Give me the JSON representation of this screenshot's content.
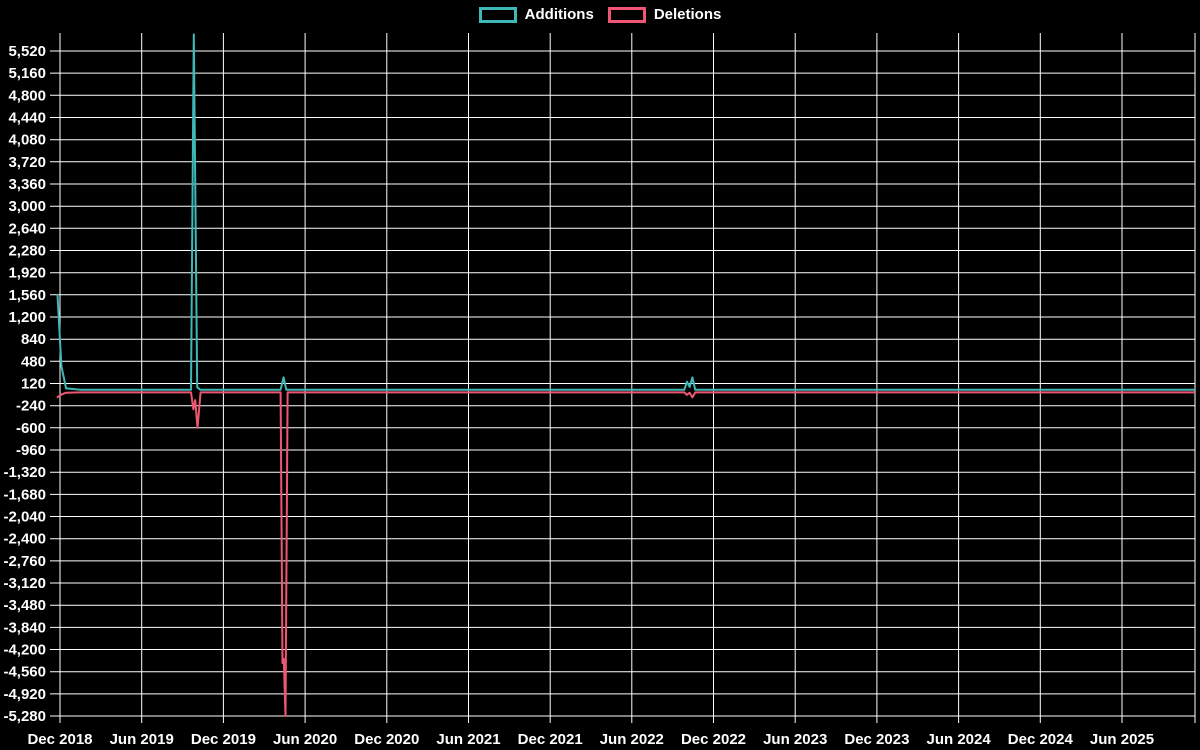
{
  "page": {
    "background": "#000000",
    "text_color": "#ffffff"
  },
  "chart_data": {
    "type": "line",
    "title": "",
    "legend_position": "top-center",
    "grid": true,
    "background": "#000000",
    "grid_color": "#ffffff",
    "text_color": "#ffffff",
    "x_axis": {
      "unit": "months offset from Dec 2018 tick",
      "tick_labels": [
        "Dec 2018",
        "Jun 2019",
        "Dec 2019",
        "Jun 2020",
        "Dec 2020",
        "Jun 2021",
        "Dec 2021",
        "Jun 2022",
        "Dec 2022",
        "Jun 2023",
        "Dec 2023",
        "Jun 2024",
        "Dec 2024",
        "Jun 2025"
      ],
      "tick_offsets": [
        0,
        6,
        12,
        18,
        24,
        30,
        36,
        42,
        48,
        54,
        60,
        66,
        72,
        78
      ]
    },
    "y_axis": {
      "min": -5280,
      "max": 5520,
      "step": 360,
      "tick_values": [
        5520,
        5160,
        4800,
        4440,
        4080,
        3720,
        3360,
        3000,
        2640,
        2280,
        1920,
        1560,
        1200,
        840,
        480,
        120,
        -240,
        -600,
        -960,
        -1320,
        -1680,
        -2040,
        -2400,
        -2760,
        -3120,
        -3480,
        -3840,
        -4200,
        -4560,
        -4920,
        -5280
      ]
    },
    "series": [
      {
        "name": "Additions",
        "color": "#3fb8b8",
        "points": [
          [
            -0.18,
            1560
          ],
          [
            0.1,
            400
          ],
          [
            0.45,
            40
          ],
          [
            1.5,
            20
          ],
          [
            9.62,
            20
          ],
          [
            9.83,
            5790
          ],
          [
            10.08,
            60
          ],
          [
            10.3,
            20
          ],
          [
            16.2,
            20
          ],
          [
            16.42,
            220
          ],
          [
            16.62,
            20
          ],
          [
            45.85,
            20
          ],
          [
            46.05,
            150
          ],
          [
            46.25,
            65
          ],
          [
            46.45,
            220
          ],
          [
            46.65,
            20
          ],
          [
            83.3,
            20
          ]
        ]
      },
      {
        "name": "Deletions",
        "color": "#ef5673",
        "points": [
          [
            -0.18,
            -100
          ],
          [
            0.1,
            -60
          ],
          [
            0.45,
            -30
          ],
          [
            1.5,
            -25
          ],
          [
            9.62,
            -25
          ],
          [
            9.8,
            -300
          ],
          [
            9.93,
            -150
          ],
          [
            10.1,
            -600
          ],
          [
            10.33,
            -25
          ],
          [
            16.2,
            -25
          ],
          [
            16.34,
            -4420
          ],
          [
            16.44,
            -4350
          ],
          [
            16.56,
            -5280
          ],
          [
            16.72,
            -25
          ],
          [
            45.85,
            -25
          ],
          [
            46.05,
            -65
          ],
          [
            46.25,
            -30
          ],
          [
            46.45,
            -105
          ],
          [
            46.65,
            -25
          ],
          [
            83.3,
            -25
          ]
        ]
      }
    ]
  }
}
